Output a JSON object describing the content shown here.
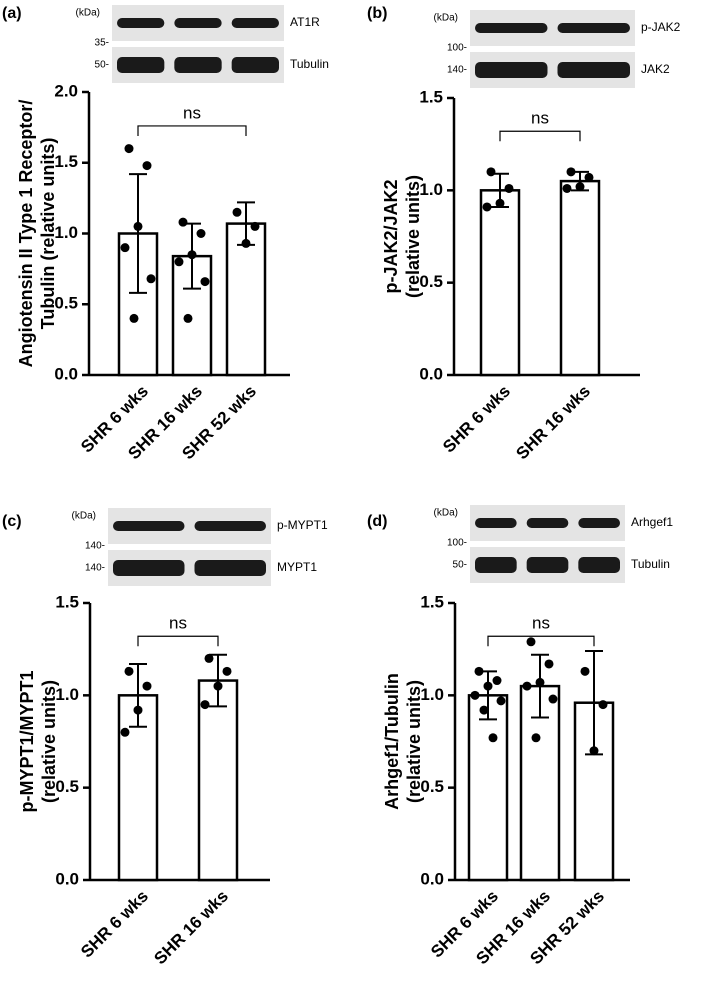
{
  "chart_data": [
    {
      "type": "bar",
      "panel": "(a)",
      "ylabel": [
        "Angiotensin II Type 1 Receptor/",
        "Tubulin (relative units)"
      ],
      "categories": [
        "SHR 6 wks",
        "SHR 16 wks",
        "SHR 52 wks"
      ],
      "values": [
        1.0,
        0.84,
        1.07
      ],
      "errors": [
        0.42,
        0.23,
        0.15
      ],
      "points": [
        [
          1.6,
          1.48,
          1.05,
          0.9,
          0.68,
          0.4
        ],
        [
          1.08,
          1.0,
          0.85,
          0.8,
          0.66,
          0.4
        ],
        [
          1.15,
          1.05,
          0.93
        ]
      ],
      "ylim": [
        0,
        2.0
      ],
      "yticks": [
        {
          "value": 0,
          "label": "0.0"
        },
        {
          "value": 0.5,
          "label": "0.5"
        },
        {
          "value": 1.0,
          "label": "1.0"
        },
        {
          "value": 1.5,
          "label": "1.5"
        },
        {
          "value": 2.0,
          "label": "2.0"
        }
      ],
      "annotation": "ns",
      "blot": {
        "unit": "(kDa)",
        "markers": [
          "35-",
          "50-"
        ],
        "bands": [
          "AT1R",
          "Tubulin"
        ]
      }
    },
    {
      "type": "bar",
      "panel": "(b)",
      "ylabel": [
        "p-JAK2/JAK2",
        "(relative units)"
      ],
      "categories": [
        "SHR 6 wks",
        "SHR 16 wks"
      ],
      "values": [
        1.0,
        1.05
      ],
      "errors": [
        0.09,
        0.05
      ],
      "points": [
        [
          1.1,
          1.01,
          0.93,
          0.91
        ],
        [
          1.1,
          1.07,
          1.02,
          1.01
        ]
      ],
      "ylim": [
        0,
        1.5
      ],
      "yticks": [
        {
          "value": 0,
          "label": "0.0"
        },
        {
          "value": 0.5,
          "label": "0.5"
        },
        {
          "value": 1.0,
          "label": "1.0"
        },
        {
          "value": 1.5,
          "label": "1.5"
        }
      ],
      "annotation": "ns",
      "blot": {
        "unit": "(kDa)",
        "markers": [
          "100-",
          "140-"
        ],
        "bands": [
          "p-JAK2",
          "JAK2"
        ]
      }
    },
    {
      "type": "bar",
      "panel": "(c)",
      "ylabel": [
        "p-MYPT1/MYPT1",
        "(relative units)"
      ],
      "categories": [
        "SHR 6 wks",
        "SHR 16 wks"
      ],
      "values": [
        1.0,
        1.08
      ],
      "errors": [
        0.17,
        0.14
      ],
      "points": [
        [
          1.13,
          1.05,
          0.92,
          0.8
        ],
        [
          1.2,
          1.13,
          1.05,
          0.95
        ]
      ],
      "ylim": [
        0,
        1.5
      ],
      "yticks": [
        {
          "value": 0,
          "label": "0.0"
        },
        {
          "value": 0.5,
          "label": "0.5"
        },
        {
          "value": 1.0,
          "label": "1.0"
        },
        {
          "value": 1.5,
          "label": "1.5"
        }
      ],
      "annotation": "ns",
      "blot": {
        "unit": "(kDa)",
        "markers": [
          "140-",
          "140-"
        ],
        "bands": [
          "p-MYPT1",
          "MYPT1"
        ]
      }
    },
    {
      "type": "bar",
      "panel": "(d)",
      "ylabel": [
        "Arhgef1/Tubulin",
        "(relative units)"
      ],
      "categories": [
        "SHR 6 wks",
        "SHR 16 wks",
        "SHR 52 wks"
      ],
      "values": [
        1.0,
        1.05,
        0.96
      ],
      "errors": [
        0.13,
        0.17,
        0.28
      ],
      "points": [
        [
          1.13,
          1.08,
          1.05,
          1.0,
          0.97,
          0.92,
          0.77
        ],
        [
          1.29,
          1.17,
          1.07,
          1.05,
          0.98,
          0.77
        ],
        [
          1.13,
          0.95,
          0.7
        ]
      ],
      "ylim": [
        0,
        1.5
      ],
      "yticks": [
        {
          "value": 0,
          "label": "0.0"
        },
        {
          "value": 0.5,
          "label": "0.5"
        },
        {
          "value": 1.0,
          "label": "1.0"
        },
        {
          "value": 1.5,
          "label": "1.5"
        }
      ],
      "annotation": "ns",
      "blot": {
        "unit": "(kDa)",
        "markers": [
          "100-",
          "50-"
        ],
        "bands": [
          "Arhgef1",
          "Tubulin"
        ]
      }
    }
  ]
}
